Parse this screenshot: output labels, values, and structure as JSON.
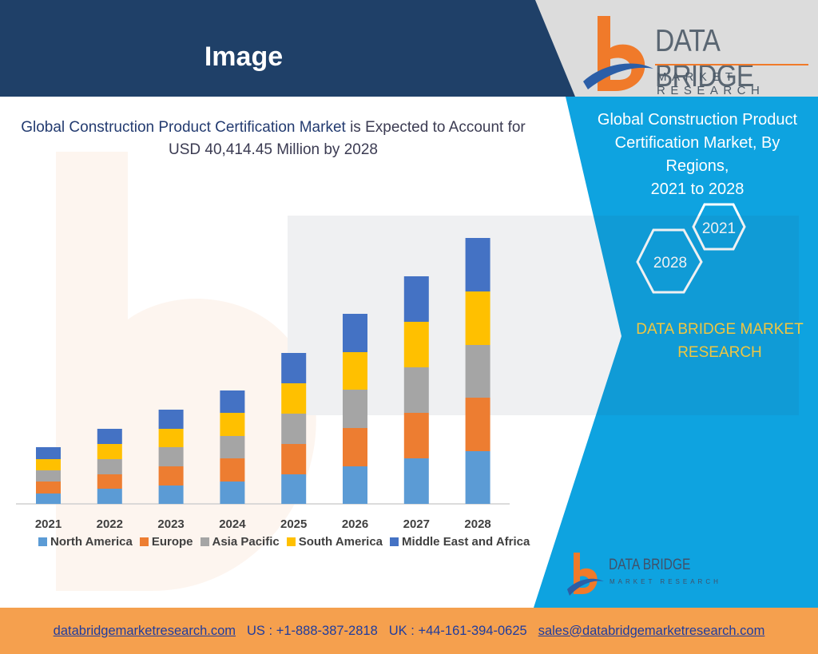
{
  "header": {
    "title": "Image"
  },
  "logo": {
    "name": "DATA BRIDGE",
    "tagline": "MARKET RESEARCH"
  },
  "panel": {
    "title_line1": "Global Construction Product",
    "title_line2": "Certification Market, By Regions,",
    "title_line3": "2021 to 2028",
    "hex_top": "2021",
    "hex_bottom": "2028",
    "brand_line1": "DATA BRIDGE MARKET",
    "brand_line2": "RESEARCH"
  },
  "chart_data": {
    "type": "bar",
    "stacked": true,
    "title_part1": "Global Construction Product Certification Market",
    "title_part2": " is Expected to Account for",
    "title_line2": "USD 40,414.45 Million by 2028",
    "categories": [
      "2021",
      "2022",
      "2023",
      "2024",
      "2025",
      "2026",
      "2027",
      "2028"
    ],
    "series": [
      {
        "name": "North America",
        "color": "#5b9bd5",
        "values": [
          13,
          19,
          23,
          28,
          37,
          47,
          57,
          66
        ]
      },
      {
        "name": "Europe",
        "color": "#ed7d31",
        "values": [
          15,
          18,
          24,
          29,
          38,
          48,
          57,
          67
        ]
      },
      {
        "name": "Asia Pacific",
        "color": "#a5a5a5",
        "values": [
          14,
          19,
          24,
          28,
          38,
          48,
          57,
          66
        ]
      },
      {
        "name": "South America",
        "color": "#ffc000",
        "values": [
          14,
          19,
          23,
          29,
          38,
          47,
          57,
          67
        ]
      },
      {
        "name": "Middle East and Africa",
        "color": "#4472c4",
        "values": [
          15,
          19,
          24,
          28,
          38,
          48,
          57,
          67
        ]
      }
    ],
    "grid": false,
    "legend_position": "bottom"
  },
  "footer": {
    "website": "databridgemarketresearch.com",
    "us_phone": "US : +1-888-387-2818",
    "uk_phone": "UK : +44-161-394-0625",
    "email": "sales@databridgemarketresearch.com"
  },
  "small_logo": {
    "name": "DATA BRIDGE",
    "tagline": "MARKET RESEARCH"
  },
  "colors": {
    "header_dark": "#1f4068",
    "panel_blue": "#0ea3e0",
    "footer_orange": "#f5a04e",
    "brand_orange": "#f07a2a",
    "brand_yellow": "#ffd23f"
  }
}
